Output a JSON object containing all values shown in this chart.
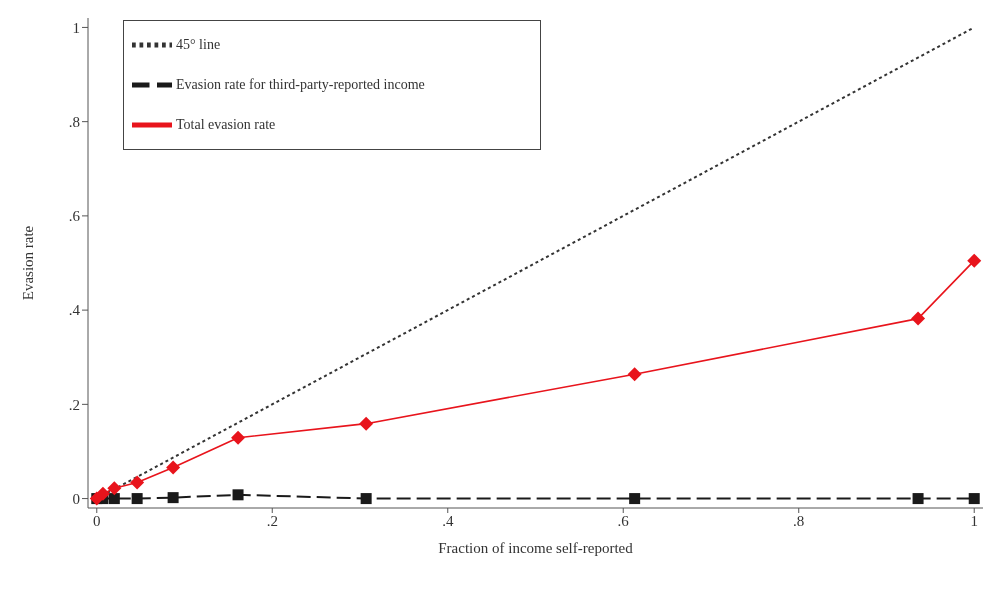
{
  "chart_data": {
    "type": "line",
    "xlabel": "Fraction of income self-reported",
    "ylabel": "Evasion rate",
    "xlim": [
      -0.01,
      1.01
    ],
    "xticks": [
      {
        "value": 0,
        "label": "0"
      },
      {
        "value": 0.2,
        "label": ".2"
      },
      {
        "value": 0.4,
        "label": ".4"
      },
      {
        "value": 0.6,
        "label": ".6"
      },
      {
        "value": 0.8,
        "label": ".8"
      },
      {
        "value": 1,
        "label": "1"
      }
    ],
    "ylim": [
      -0.02,
      1.02
    ],
    "yticks": [
      {
        "value": 0,
        "label": "0"
      },
      {
        "value": 0.2,
        "label": ".2"
      },
      {
        "value": 0.4,
        "label": ".4"
      },
      {
        "value": 0.6,
        "label": ".6"
      },
      {
        "value": 0.8,
        "label": ".8"
      },
      {
        "value": 1,
        "label": "1"
      }
    ],
    "legend": "top left",
    "series": [
      {
        "name": "Total evasion rate",
        "color": "#e8141c",
        "marker": "diamond",
        "line_style": "solid",
        "x": [
          0,
          0.007,
          0.02,
          0.046,
          0.087,
          0.161,
          0.307,
          0.613,
          0.936,
          1
        ],
        "values": [
          0,
          0.01,
          0.022,
          0.034,
          0.066,
          0.129,
          0.159,
          0.264,
          0.382,
          0.505
        ]
      },
      {
        "name": "Evasion rate for third-party-reported income",
        "color": "#1a1a1a",
        "marker": "square",
        "line_style": "dashed",
        "x": [
          0,
          0.007,
          0.02,
          0.046,
          0.087,
          0.161,
          0.307,
          0.613,
          0.936,
          1
        ],
        "values": [
          0,
          0,
          0,
          0,
          0.002,
          0.008,
          0,
          0,
          0,
          0
        ]
      },
      {
        "name": "45° line",
        "color": "#333333",
        "marker": "none",
        "line_style": "dotted",
        "x": [
          0,
          1
        ],
        "values": [
          0,
          1
        ]
      }
    ]
  }
}
